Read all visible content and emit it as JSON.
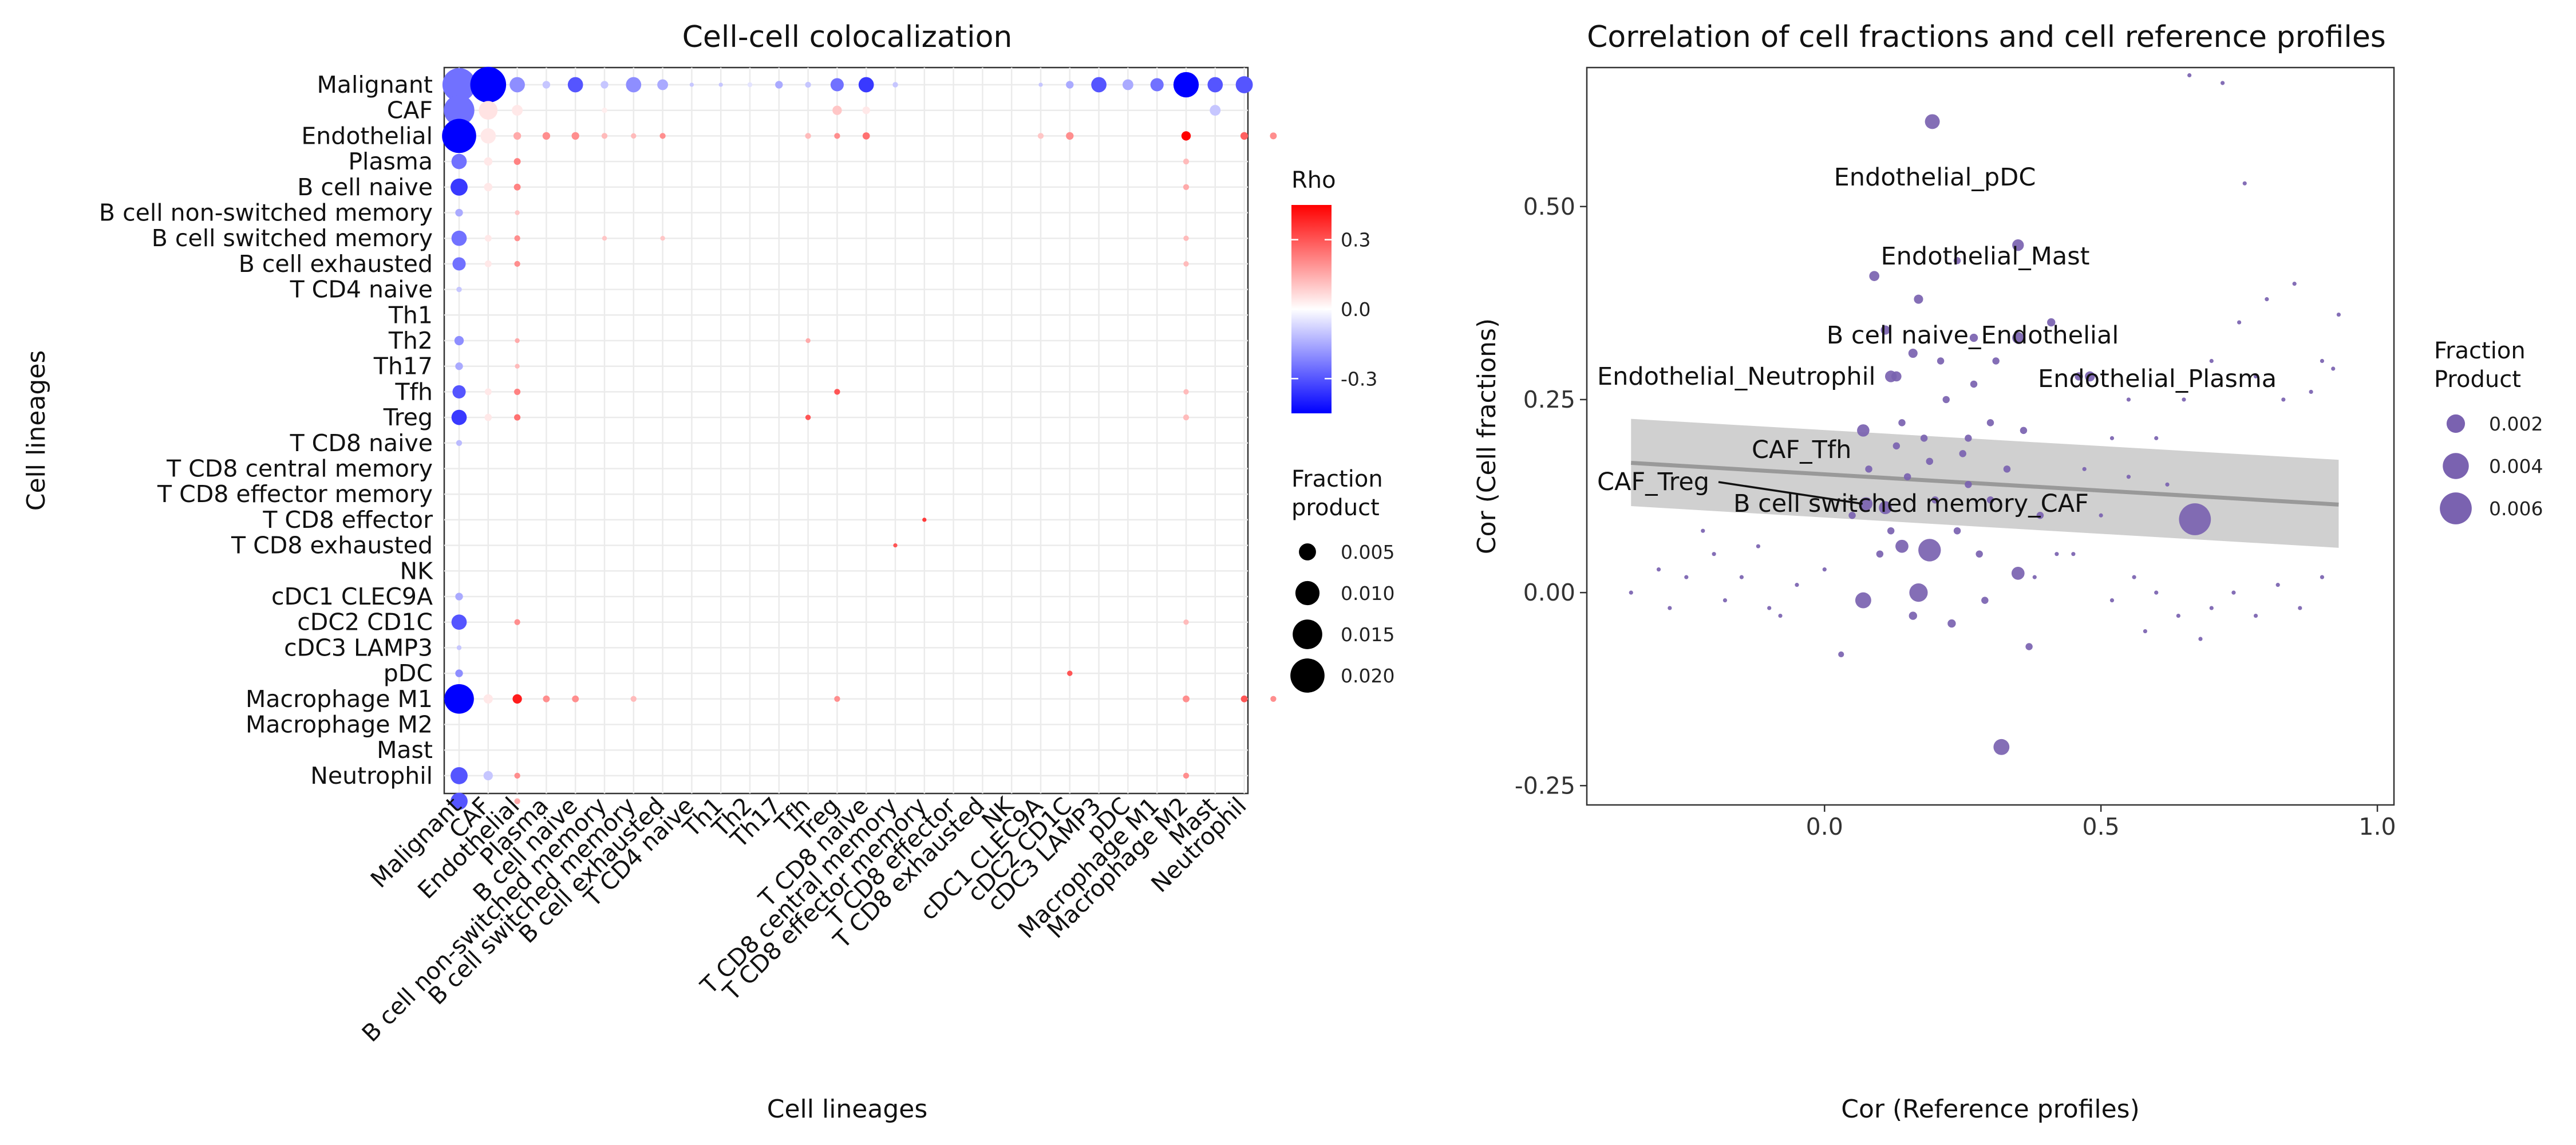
{
  "chart_data": [
    {
      "type": "dot-heatmap",
      "title": "Cell-cell colocalization",
      "xlabel": "Cell lineages",
      "ylabel": "Cell lineages",
      "lineages": [
        "Malignant",
        "CAF",
        "Endothelial",
        "Plasma",
        "B cell naive",
        "B cell non-switched memory",
        "B cell switched memory",
        "B cell exhausted",
        "T CD4 naive",
        "Th1",
        "Th2",
        "Th17",
        "Tfh",
        "Treg",
        "T CD8 naive",
        "T CD8 central memory",
        "T CD8 effector memory",
        "T CD8 effector",
        "T CD8 exhausted",
        "NK",
        "cDC1 CLEC9A",
        "cDC2 CD1C",
        "cDC3 LAMP3",
        "pDC",
        "Macrophage M1",
        "Macrophage M2",
        "Mast",
        "Neutrophil"
      ],
      "rho_colors": {
        "low": "#0000ff",
        "mid": "#ffffff",
        "high": "#ff0000"
      },
      "rho_limits": [
        -0.45,
        0.45
      ],
      "legend_rho": {
        "title": "Rho",
        "ticks": [
          0.3,
          0.0,
          -0.3
        ],
        "tick_labels": [
          "0.3",
          "0.0",
          "-0.3"
        ]
      },
      "legend_size": {
        "title_line1": "Fraction",
        "title_line2": "product",
        "values": [
          0.005,
          0.01,
          0.015,
          0.02
        ],
        "labels": [
          "0.005",
          "0.010",
          "0.015",
          "0.020"
        ],
        "max_value": 0.023
      },
      "cells": [
        [
          0,
          1,
          0.019,
          -0.25
        ],
        [
          0,
          2,
          0.022,
          -0.45
        ],
        [
          0,
          3,
          0.004,
          -0.2
        ],
        [
          0,
          4,
          0.001,
          -0.1
        ],
        [
          0,
          5,
          0.004,
          -0.3
        ],
        [
          0,
          6,
          0.001,
          -0.1
        ],
        [
          0,
          7,
          0.004,
          -0.2
        ],
        [
          0,
          8,
          0.002,
          -0.15
        ],
        [
          0,
          9,
          0.0003,
          -0.1
        ],
        [
          0,
          10,
          0.0003,
          -0.1
        ],
        [
          0,
          11,
          0.0004,
          -0.05
        ],
        [
          0,
          12,
          0.001,
          -0.15
        ],
        [
          0,
          13,
          0.0006,
          -0.1
        ],
        [
          0,
          14,
          0.003,
          -0.25
        ],
        [
          0,
          15,
          0.004,
          -0.35
        ],
        [
          0,
          16,
          0.0005,
          -0.1
        ],
        [
          0,
          21,
          0.0003,
          -0.1
        ],
        [
          0,
          22,
          0.001,
          -0.15
        ],
        [
          0,
          23,
          0.004,
          -0.3
        ],
        [
          0,
          24,
          0.002,
          -0.15
        ],
        [
          0,
          25,
          0.003,
          -0.25
        ],
        [
          0,
          26,
          0.011,
          -0.45
        ],
        [
          0,
          27,
          0.004,
          -0.3
        ],
        [
          0,
          28,
          0.005,
          -0.3
        ],
        [
          1,
          1,
          0.016,
          -0.25
        ],
        [
          1,
          2,
          0.006,
          0.05
        ],
        [
          1,
          3,
          0.002,
          0.04
        ],
        [
          1,
          6,
          0.0005,
          0.03
        ],
        [
          1,
          14,
          0.0015,
          0.1
        ],
        [
          1,
          15,
          0.001,
          0.04
        ],
        [
          1,
          27,
          0.002,
          -0.1
        ],
        [
          2,
          1,
          0.02,
          -0.45
        ],
        [
          2,
          2,
          0.004,
          0.04
        ],
        [
          2,
          3,
          0.001,
          0.15
        ],
        [
          2,
          4,
          0.001,
          0.2
        ],
        [
          2,
          5,
          0.001,
          0.2
        ],
        [
          2,
          6,
          0.0006,
          0.12
        ],
        [
          2,
          7,
          0.0005,
          0.12
        ],
        [
          2,
          8,
          0.0006,
          0.2
        ],
        [
          2,
          13,
          0.0006,
          0.12
        ],
        [
          2,
          14,
          0.0006,
          0.2
        ],
        [
          2,
          15,
          0.0009,
          0.25
        ],
        [
          2,
          21,
          0.0006,
          0.1
        ],
        [
          2,
          22,
          0.001,
          0.2
        ],
        [
          2,
          26,
          0.0015,
          0.45
        ],
        [
          2,
          28,
          0.001,
          0.28
        ],
        [
          2,
          29,
          0.0008,
          0.2
        ],
        [
          3,
          1,
          0.004,
          -0.25
        ],
        [
          3,
          2,
          0.0012,
          0.04
        ],
        [
          3,
          3,
          0.0008,
          0.22
        ],
        [
          3,
          26,
          0.0006,
          0.12
        ],
        [
          4,
          1,
          0.005,
          -0.35
        ],
        [
          4,
          2,
          0.0012,
          0.04
        ],
        [
          4,
          3,
          0.0008,
          0.22
        ],
        [
          4,
          26,
          0.0006,
          0.15
        ],
        [
          5,
          1,
          0.001,
          -0.15
        ],
        [
          5,
          3,
          0.0004,
          0.1
        ],
        [
          6,
          1,
          0.004,
          -0.25
        ],
        [
          6,
          2,
          0.0008,
          0.04
        ],
        [
          6,
          3,
          0.0006,
          0.2
        ],
        [
          6,
          6,
          0.0004,
          0.1
        ],
        [
          6,
          8,
          0.0004,
          0.1
        ],
        [
          6,
          26,
          0.0005,
          0.12
        ],
        [
          7,
          1,
          0.003,
          -0.25
        ],
        [
          7,
          2,
          0.0008,
          0.04
        ],
        [
          7,
          3,
          0.0006,
          0.2
        ],
        [
          7,
          26,
          0.0005,
          0.12
        ],
        [
          8,
          1,
          0.0005,
          -0.1
        ],
        [
          10,
          1,
          0.0015,
          -0.2
        ],
        [
          10,
          3,
          0.0004,
          0.15
        ],
        [
          10,
          13,
          0.0004,
          0.15
        ],
        [
          11,
          1,
          0.001,
          -0.15
        ],
        [
          11,
          3,
          0.0004,
          0.12
        ],
        [
          12,
          1,
          0.003,
          -0.3
        ],
        [
          12,
          2,
          0.0008,
          0.04
        ],
        [
          12,
          3,
          0.0007,
          0.22
        ],
        [
          12,
          14,
          0.0006,
          0.3
        ],
        [
          12,
          26,
          0.0005,
          0.12
        ],
        [
          13,
          1,
          0.004,
          -0.35
        ],
        [
          13,
          2,
          0.0009,
          0.04
        ],
        [
          13,
          3,
          0.0007,
          0.25
        ],
        [
          13,
          13,
          0.0005,
          0.3
        ],
        [
          13,
          26,
          0.0006,
          0.12
        ],
        [
          14,
          1,
          0.0006,
          -0.12
        ],
        [
          17,
          17,
          0.0003,
          0.35
        ],
        [
          18,
          16,
          0.0003,
          0.3
        ],
        [
          20,
          1,
          0.001,
          -0.15
        ],
        [
          21,
          1,
          0.004,
          -0.3
        ],
        [
          21,
          3,
          0.0006,
          0.2
        ],
        [
          21,
          26,
          0.0005,
          0.12
        ],
        [
          22,
          1,
          0.0004,
          -0.1
        ],
        [
          23,
          1,
          0.001,
          -0.2
        ],
        [
          23,
          22,
          0.0005,
          0.3
        ],
        [
          24,
          1,
          0.015,
          -0.45
        ],
        [
          24,
          2,
          0.0015,
          0.04
        ],
        [
          24,
          3,
          0.0015,
          0.4
        ],
        [
          24,
          4,
          0.0008,
          0.2
        ],
        [
          24,
          5,
          0.0008,
          0.2
        ],
        [
          24,
          7,
          0.0006,
          0.12
        ],
        [
          24,
          14,
          0.0006,
          0.2
        ],
        [
          24,
          26,
          0.0008,
          0.2
        ],
        [
          24,
          28,
          0.0008,
          0.3
        ],
        [
          24,
          29,
          0.0006,
          0.2
        ],
        [
          27,
          1,
          0.005,
          -0.3
        ],
        [
          27,
          2,
          0.0015,
          -0.1
        ],
        [
          27,
          3,
          0.0006,
          0.2
        ],
        [
          27,
          26,
          0.0006,
          0.2
        ],
        [
          28,
          1,
          0.005,
          -0.3
        ],
        [
          28,
          3,
          0.0006,
          0.15
        ]
      ]
    },
    {
      "type": "scatter",
      "title": "Correlation of cell fractions and cell reference profiles",
      "xlabel": "Cor (Reference profiles)",
      "ylabel": "Cor (Cell fractions)",
      "xlim": [
        -0.43,
        1.03
      ],
      "ylim": [
        -0.275,
        0.68
      ],
      "xticks": [
        0.0,
        0.5,
        1.0
      ],
      "xtick_labels": [
        "0.0",
        "0.5",
        "1.0"
      ],
      "yticks": [
        -0.25,
        0.0,
        0.25,
        0.5
      ],
      "ytick_labels": [
        "-0.25",
        "0.00",
        "0.25",
        "0.50"
      ],
      "point_color": "#7a62b0",
      "trend": {
        "x": [
          -0.35,
          0.93
        ],
        "y": [
          0.168,
          0.114
        ],
        "band_upper": [
          0.225,
          0.172
        ],
        "band_lower": [
          0.112,
          0.058
        ]
      },
      "legend": {
        "title_line1": "Fraction",
        "title_line2": "Product",
        "values": [
          0.002,
          0.004,
          0.006
        ],
        "labels": [
          "0.002",
          "0.004",
          "0.006"
        ],
        "max_value": 0.0065
      },
      "labeled_points": [
        {
          "label": "Endothelial_pDC",
          "x": 0.195,
          "y": 0.61,
          "size": 0.0013
        },
        {
          "label": "Endothelial_Mast",
          "x": 0.35,
          "y": 0.45,
          "size": 0.0008
        },
        {
          "label": "B cell naive_Endothelial",
          "x": 0.35,
          "y": 0.33,
          "size": 0.0008
        },
        {
          "label": "Endothelial_Neutrophil",
          "x": 0.12,
          "y": 0.28,
          "size": 0.0008
        },
        {
          "label": "Endothelial_Plasma",
          "x": 0.48,
          "y": 0.28,
          "size": 0.0006
        },
        {
          "label": "CAF_Tfh",
          "x": 0.07,
          "y": 0.21,
          "size": 0.0009
        },
        {
          "label": "CAF_Treg",
          "x": 0.075,
          "y": 0.115,
          "size": 0.001
        },
        {
          "label": "B cell switched memory_CAF",
          "x": 0.67,
          "y": 0.095,
          "size": 0.006
        }
      ],
      "points": [
        [
          0.195,
          0.61,
          0.0013
        ],
        [
          0.35,
          0.45,
          0.0008
        ],
        [
          0.35,
          0.33,
          0.0008
        ],
        [
          0.12,
          0.28,
          0.0008
        ],
        [
          0.48,
          0.28,
          0.0006
        ],
        [
          0.07,
          0.21,
          0.0009
        ],
        [
          0.075,
          0.115,
          0.001
        ],
        [
          0.67,
          0.095,
          0.006
        ],
        [
          0.32,
          -0.2,
          0.0015
        ],
        [
          0.19,
          0.055,
          0.003
        ],
        [
          0.17,
          0.0,
          0.002
        ],
        [
          0.07,
          -0.01,
          0.0015
        ],
        [
          0.35,
          0.025,
          0.001
        ],
        [
          0.11,
          0.11,
          0.001
        ],
        [
          0.14,
          0.06,
          0.001
        ],
        [
          0.09,
          0.41,
          0.0006
        ],
        [
          0.17,
          0.38,
          0.0005
        ],
        [
          0.11,
          0.34,
          0.0005
        ],
        [
          0.16,
          0.31,
          0.0005
        ],
        [
          0.13,
          0.28,
          0.0006
        ],
        [
          0.27,
          0.33,
          0.0004
        ],
        [
          0.41,
          0.35,
          0.0004
        ],
        [
          0.46,
          0.28,
          0.0004
        ],
        [
          0.24,
          0.43,
          0.0003
        ],
        [
          0.15,
          0.15,
          0.0003
        ],
        [
          0.2,
          0.12,
          0.0003
        ],
        [
          0.25,
          0.18,
          0.0003
        ],
        [
          0.3,
          0.22,
          0.0003
        ],
        [
          0.22,
          0.25,
          0.0003
        ],
        [
          0.28,
          0.05,
          0.0003
        ],
        [
          0.05,
          0.1,
          0.0003
        ],
        [
          0.18,
          0.2,
          0.0003
        ],
        [
          0.26,
          0.14,
          0.0003
        ],
        [
          0.33,
          0.16,
          0.0003
        ],
        [
          0.12,
          0.08,
          0.0003
        ],
        [
          0.24,
          0.08,
          0.0003
        ],
        [
          0.3,
          0.12,
          0.0003
        ],
        [
          0.16,
          -0.03,
          0.0004
        ],
        [
          0.23,
          -0.04,
          0.0004
        ],
        [
          0.37,
          -0.07,
          0.0003
        ],
        [
          0.03,
          -0.08,
          0.0002
        ],
        [
          0.08,
          0.16,
          0.0003
        ],
        [
          0.36,
          0.21,
          0.0003
        ],
        [
          0.39,
          0.1,
          0.0003
        ],
        [
          0.21,
          0.3,
          0.0003
        ],
        [
          0.14,
          0.22,
          0.0003
        ],
        [
          0.27,
          0.27,
          0.0003
        ],
        [
          0.19,
          0.17,
          0.0003
        ],
        [
          0.31,
          0.3,
          0.0003
        ],
        [
          0.1,
          0.05,
          0.0003
        ],
        [
          0.13,
          0.19,
          0.0003
        ],
        [
          0.26,
          0.2,
          0.0003
        ],
        [
          0.29,
          -0.01,
          0.0003
        ],
        [
          -0.35,
          0.0,
          0.0001
        ],
        [
          -0.3,
          0.03,
          0.0001
        ],
        [
          -0.25,
          0.02,
          0.0001
        ],
        [
          -0.2,
          0.05,
          0.0001
        ],
        [
          -0.15,
          0.02,
          0.0001
        ],
        [
          -0.1,
          -0.02,
          0.0001
        ],
        [
          -0.05,
          0.01,
          0.0001
        ],
        [
          0.0,
          0.03,
          0.0001
        ],
        [
          -0.12,
          0.06,
          0.0001
        ],
        [
          -0.18,
          -0.01,
          0.0001
        ],
        [
          -0.28,
          -0.02,
          0.0001
        ],
        [
          -0.08,
          -0.03,
          0.0001
        ],
        [
          -0.22,
          0.08,
          0.0001
        ],
        [
          0.52,
          -0.01,
          0.0001
        ],
        [
          0.56,
          0.02,
          0.0001
        ],
        [
          0.6,
          0.0,
          0.0001
        ],
        [
          0.64,
          -0.03,
          0.0001
        ],
        [
          0.7,
          -0.02,
          0.0001
        ],
        [
          0.74,
          0.0,
          0.0001
        ],
        [
          0.78,
          -0.03,
          0.0001
        ],
        [
          0.82,
          0.01,
          0.0001
        ],
        [
          0.86,
          -0.02,
          0.0001
        ],
        [
          0.9,
          0.02,
          0.0001
        ],
        [
          0.58,
          -0.05,
          0.0001
        ],
        [
          0.68,
          -0.06,
          0.0001
        ],
        [
          0.45,
          0.05,
          0.0001
        ],
        [
          0.5,
          0.1,
          0.0001
        ],
        [
          0.55,
          0.15,
          0.0001
        ],
        [
          0.6,
          0.2,
          0.0001
        ],
        [
          0.65,
          0.25,
          0.0001
        ],
        [
          0.7,
          0.3,
          0.0001
        ],
        [
          0.75,
          0.35,
          0.0001
        ],
        [
          0.8,
          0.38,
          0.0001
        ],
        [
          0.85,
          0.4,
          0.0001
        ],
        [
          0.9,
          0.3,
          0.0001
        ],
        [
          0.72,
          0.66,
          0.0001
        ],
        [
          0.66,
          0.67,
          0.0001
        ],
        [
          0.76,
          0.53,
          0.0001
        ],
        [
          0.93,
          0.36,
          0.0001
        ],
        [
          0.92,
          0.29,
          0.0001
        ],
        [
          0.88,
          0.26,
          0.0001
        ],
        [
          0.83,
          0.25,
          0.0001
        ],
        [
          0.78,
          0.28,
          0.0001
        ],
        [
          0.55,
          0.25,
          0.0001
        ],
        [
          0.62,
          0.14,
          0.0001
        ],
        [
          0.52,
          0.2,
          0.0001
        ],
        [
          0.47,
          0.16,
          0.0001
        ],
        [
          0.42,
          0.05,
          0.0001
        ],
        [
          0.38,
          0.02,
          0.0001
        ]
      ]
    }
  ]
}
